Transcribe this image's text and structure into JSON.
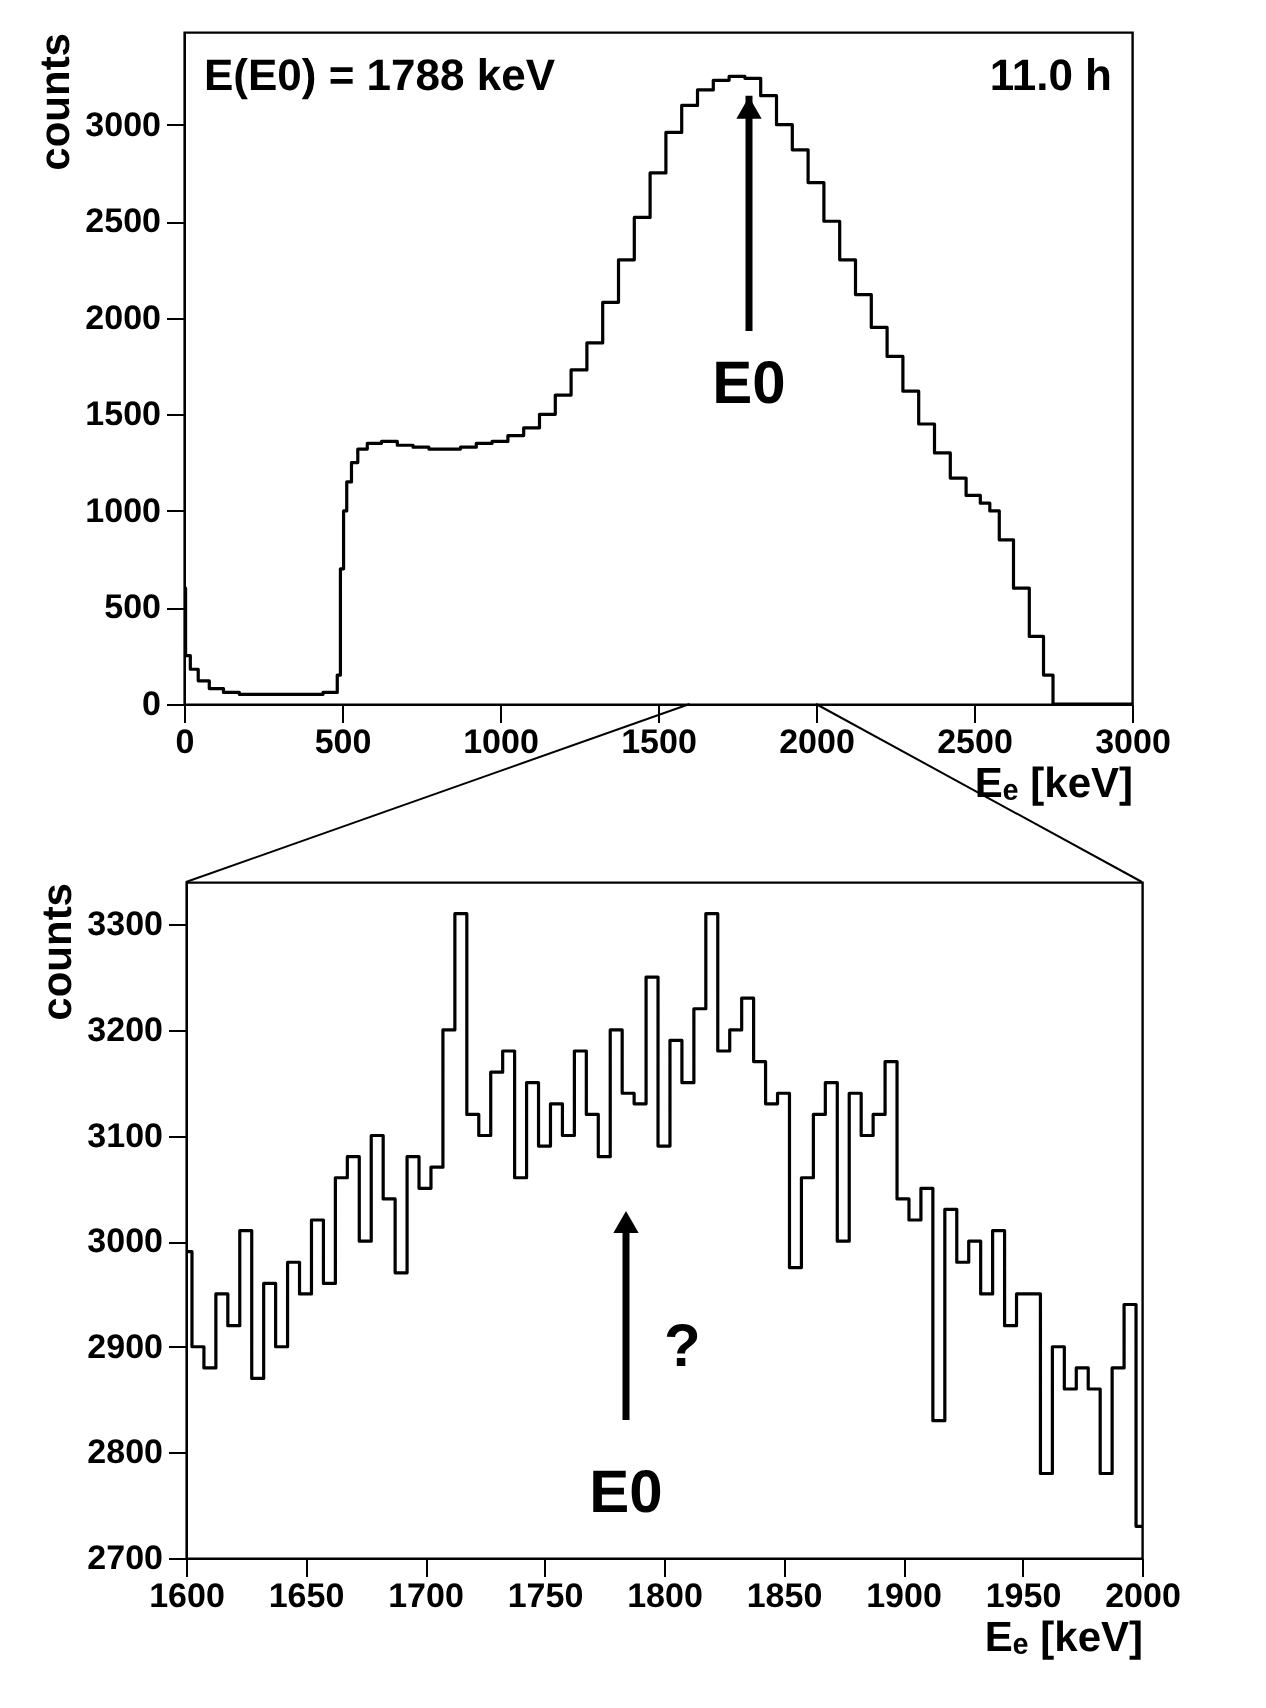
{
  "chart_data": [
    {
      "type": "step",
      "xlabel": "Eₑ [keV]",
      "ylabel": "counts",
      "xlim": [
        0,
        3000
      ],
      "ylim": [
        0,
        3480
      ],
      "xticks": [
        0,
        500,
        1000,
        1500,
        2000,
        2500,
        3000
      ],
      "yticks": [
        0,
        500,
        1000,
        1500,
        2000,
        2500,
        3000
      ],
      "annotations": [
        "E(E0) = 1788 keV",
        "11.0 h",
        {
          "text": "E0",
          "x": 1788,
          "y": 3150
        }
      ],
      "x": [
        0,
        10,
        30,
        60,
        100,
        150,
        200,
        300,
        400,
        480,
        490,
        500,
        510,
        520,
        540,
        560,
        600,
        650,
        700,
        750,
        800,
        850,
        900,
        950,
        1000,
        1050,
        1100,
        1150,
        1200,
        1250,
        1300,
        1350,
        1400,
        1450,
        1500,
        1550,
        1600,
        1650,
        1700,
        1750,
        1800,
        1850,
        1900,
        1950,
        2000,
        2050,
        2100,
        2150,
        2200,
        2250,
        2300,
        2350,
        2400,
        2450,
        2500,
        2540,
        2560,
        2600,
        2650,
        2700,
        2740,
        2760,
        2800,
        3000
      ],
      "series": [
        {
          "color": "#000000",
          "values": [
            600,
            250,
            180,
            120,
            80,
            60,
            50,
            50,
            50,
            60,
            150,
            700,
            1000,
            1150,
            1250,
            1320,
            1350,
            1360,
            1340,
            1330,
            1320,
            1320,
            1330,
            1350,
            1360,
            1390,
            1430,
            1500,
            1600,
            1730,
            1870,
            2080,
            2300,
            2520,
            2750,
            2960,
            3100,
            3180,
            3230,
            3250,
            3240,
            3150,
            3000,
            2870,
            2700,
            2500,
            2300,
            2120,
            1950,
            1800,
            1620,
            1450,
            1300,
            1170,
            1080,
            1040,
            1000,
            850,
            600,
            350,
            150,
            0,
            0,
            0
          ]
        }
      ]
    },
    {
      "type": "step",
      "xlabel": "Eₑ [keV]",
      "ylabel": "counts",
      "xlim": [
        1600,
        2000
      ],
      "ylim": [
        2700,
        3340
      ],
      "xticks": [
        1600,
        1650,
        1700,
        1750,
        1800,
        1850,
        1900,
        1950,
        2000
      ],
      "yticks": [
        2700,
        2800,
        2900,
        3000,
        3100,
        3200,
        3300
      ],
      "annotations": [
        "E0",
        "?"
      ],
      "x": [
        1600,
        1605,
        1610,
        1615,
        1620,
        1625,
        1630,
        1635,
        1640,
        1645,
        1650,
        1655,
        1660,
        1665,
        1670,
        1675,
        1680,
        1685,
        1690,
        1695,
        1700,
        1705,
        1710,
        1715,
        1720,
        1725,
        1730,
        1735,
        1740,
        1745,
        1750,
        1755,
        1760,
        1765,
        1770,
        1775,
        1780,
        1785,
        1790,
        1795,
        1800,
        1805,
        1810,
        1815,
        1820,
        1825,
        1830,
        1835,
        1840,
        1845,
        1850,
        1855,
        1860,
        1865,
        1870,
        1875,
        1880,
        1885,
        1890,
        1895,
        1900,
        1905,
        1910,
        1915,
        1920,
        1925,
        1930,
        1935,
        1940,
        1945,
        1950,
        1955,
        1960,
        1965,
        1970,
        1975,
        1980,
        1985,
        1990,
        1995,
        2000
      ],
      "series": [
        {
          "color": "#000000",
          "values": [
            2990,
            2900,
            2880,
            2950,
            2920,
            3010,
            2870,
            2960,
            2900,
            2980,
            2950,
            3020,
            2960,
            3060,
            3080,
            3000,
            3100,
            3040,
            2970,
            3080,
            3050,
            3070,
            3200,
            3310,
            3120,
            3100,
            3160,
            3180,
            3060,
            3150,
            3090,
            3130,
            3100,
            3180,
            3120,
            3080,
            3200,
            3140,
            3130,
            3250,
            3090,
            3190,
            3150,
            3220,
            3310,
            3180,
            3200,
            3230,
            3170,
            3130,
            3140,
            2975,
            3060,
            3120,
            3150,
            3000,
            3140,
            3100,
            3120,
            3170,
            3040,
            3020,
            3050,
            2830,
            3030,
            2980,
            3000,
            2950,
            3010,
            2920,
            2950,
            2950,
            2780,
            2900,
            2860,
            2880,
            2860,
            2780,
            2880,
            2940,
            2730
          ]
        }
      ]
    }
  ]
}
